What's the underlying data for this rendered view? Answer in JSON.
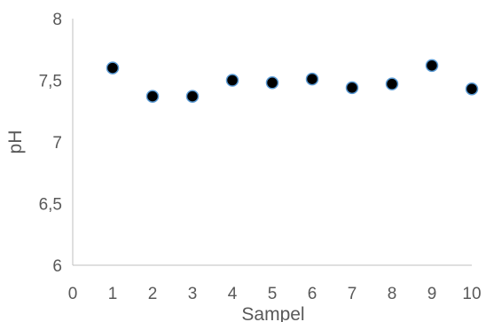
{
  "chart_data": {
    "type": "scatter",
    "title": "",
    "xlabel": "Sampel",
    "ylabel": "pH",
    "xlim": [
      0,
      10
    ],
    "ylim": [
      6,
      8
    ],
    "x_ticks": [
      "0",
      "1",
      "2",
      "3",
      "4",
      "5",
      "6",
      "7",
      "8",
      "9",
      "10"
    ],
    "y_ticks": [
      "6",
      "6,5",
      "7",
      "7,5",
      "8"
    ],
    "grid": false,
    "legend": "none",
    "marker_fill": "#000000",
    "marker_edge": "#5b9bd5",
    "series": [
      {
        "x": [
          1,
          2,
          3,
          4,
          5,
          6,
          7,
          8,
          9,
          10
        ],
        "y": [
          7.6,
          7.37,
          7.37,
          7.5,
          7.48,
          7.51,
          7.44,
          7.47,
          7.62,
          7.43
        ]
      }
    ]
  }
}
